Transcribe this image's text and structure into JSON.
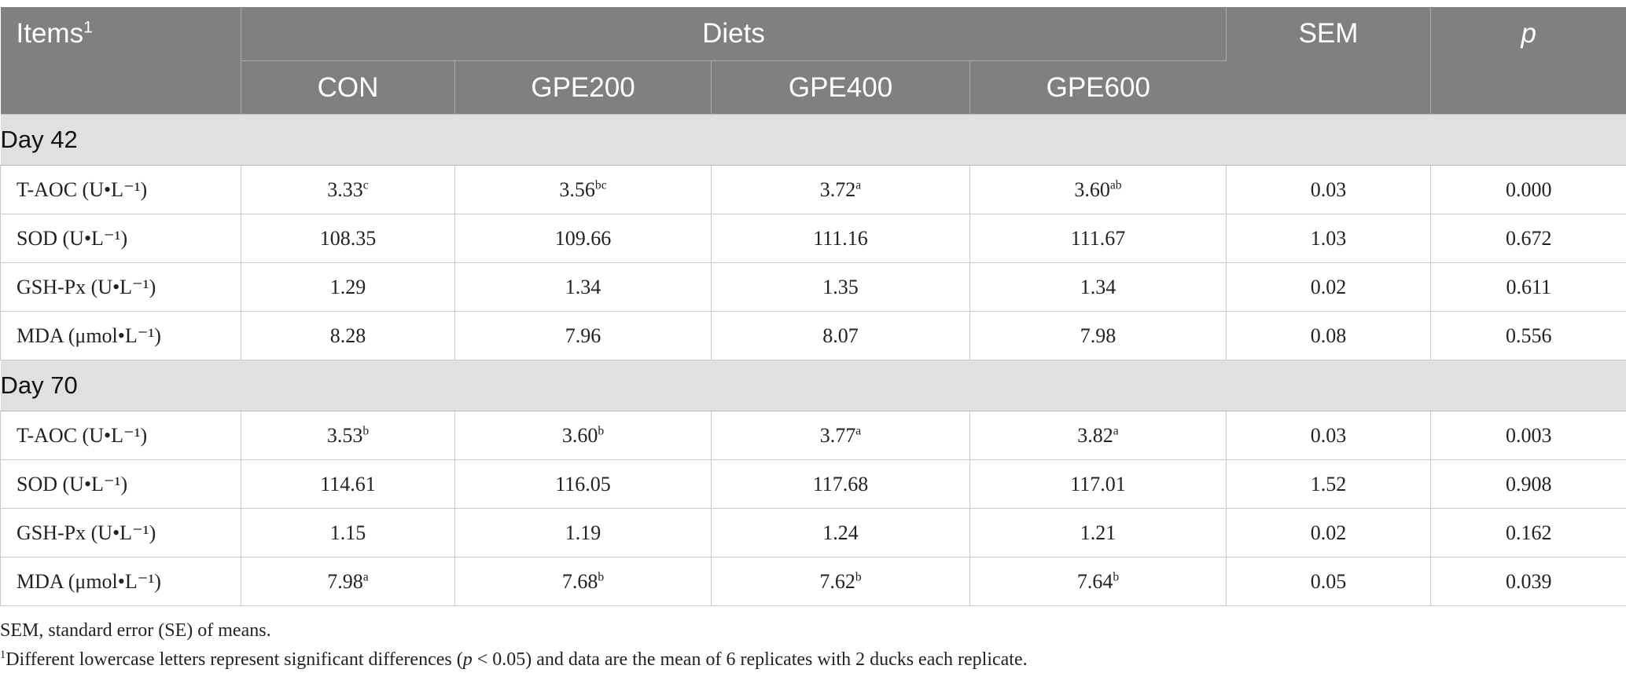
{
  "header": {
    "items": "Items",
    "items_sup": "1",
    "diets": "Diets",
    "sem": "SEM",
    "p": "p",
    "diet_cols": [
      "CON",
      "GPE200",
      "GPE400",
      "GPE600"
    ]
  },
  "sections": [
    {
      "title": "Day 42",
      "rows": [
        {
          "item": "T-AOC (U•L⁻¹)",
          "values": [
            [
              "3.33",
              "c"
            ],
            [
              "3.56",
              "bc"
            ],
            [
              "3.72",
              "a"
            ],
            [
              "3.60",
              "ab"
            ]
          ],
          "sem": "0.03",
          "p": "0.000"
        },
        {
          "item": "SOD (U•L⁻¹)",
          "values": [
            [
              "108.35",
              ""
            ],
            [
              "109.66",
              ""
            ],
            [
              "111.16",
              ""
            ],
            [
              "111.67",
              ""
            ]
          ],
          "sem": "1.03",
          "p": "0.672"
        },
        {
          "item": "GSH-Px (U•L⁻¹)",
          "values": [
            [
              "1.29",
              ""
            ],
            [
              "1.34",
              ""
            ],
            [
              "1.35",
              ""
            ],
            [
              "1.34",
              ""
            ]
          ],
          "sem": "0.02",
          "p": "0.611"
        },
        {
          "item": "MDA (μmol•L⁻¹)",
          "values": [
            [
              "8.28",
              ""
            ],
            [
              "7.96",
              ""
            ],
            [
              "8.07",
              ""
            ],
            [
              "7.98",
              ""
            ]
          ],
          "sem": "0.08",
          "p": "0.556"
        }
      ]
    },
    {
      "title": "Day 70",
      "rows": [
        {
          "item": "T-AOC (U•L⁻¹)",
          "values": [
            [
              "3.53",
              "b"
            ],
            [
              "3.60",
              "b"
            ],
            [
              "3.77",
              "a"
            ],
            [
              "3.82",
              "a"
            ]
          ],
          "sem": "0.03",
          "p": "0.003"
        },
        {
          "item": "SOD (U•L⁻¹)",
          "values": [
            [
              "114.61",
              ""
            ],
            [
              "116.05",
              ""
            ],
            [
              "117.68",
              ""
            ],
            [
              "117.01",
              ""
            ]
          ],
          "sem": "1.52",
          "p": "0.908"
        },
        {
          "item": "GSH-Px (U•L⁻¹)",
          "values": [
            [
              "1.15",
              ""
            ],
            [
              "1.19",
              ""
            ],
            [
              "1.24",
              ""
            ],
            [
              "1.21",
              ""
            ]
          ],
          "sem": "0.02",
          "p": "0.162"
        },
        {
          "item": "MDA (μmol•L⁻¹)",
          "values": [
            [
              "7.98",
              "a"
            ],
            [
              "7.68",
              "b"
            ],
            [
              "7.62",
              "b"
            ],
            [
              "7.64",
              "b"
            ]
          ],
          "sem": "0.05",
          "p": "0.039"
        }
      ]
    }
  ],
  "footnotes": {
    "sem_note": "SEM, standard error (SE) of means.",
    "note1_sup": "1",
    "note1_a": "Different lowercase letters represent significant differences (",
    "note1_p": "p",
    "note1_b": " < 0.05) and data are the mean of 6 replicates with 2 ducks each replicate."
  }
}
